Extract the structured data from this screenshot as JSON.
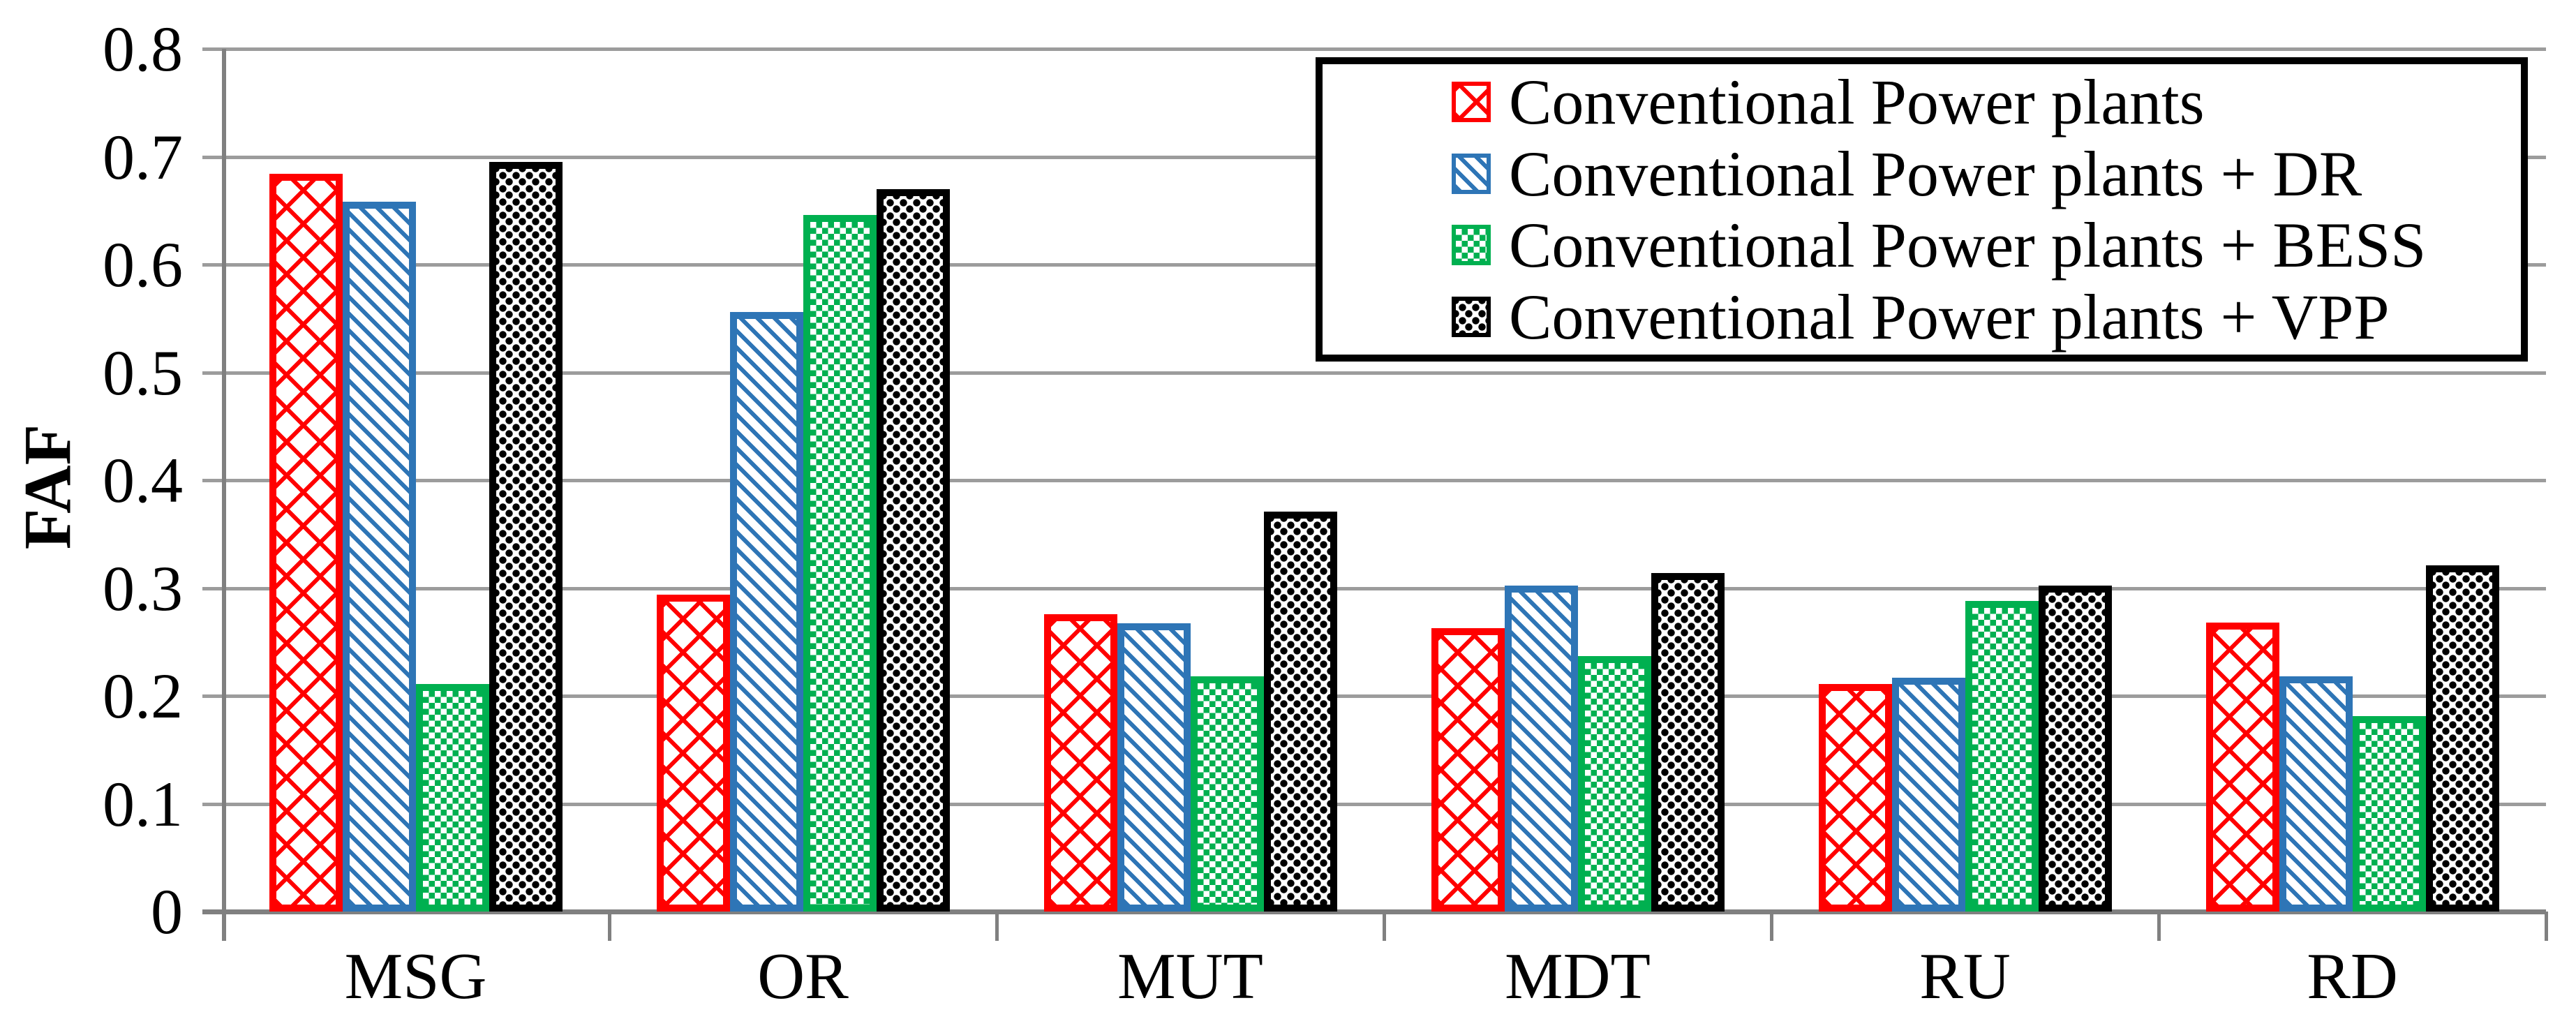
{
  "figure": {
    "background": "#FFFFFF",
    "axis_color": "#808080",
    "gridline_color": "#9C9C9C",
    "legend_border_color": "#000000"
  },
  "chart_data": {
    "type": "bar",
    "title": "",
    "xlabel": "",
    "ylabel": "FAF",
    "categories": [
      "MSG",
      "OR",
      "MUT",
      "MDT",
      "RU",
      "RD"
    ],
    "series": [
      {
        "key": "cpp",
        "name": "Conventional Power plants",
        "color": "#FF0000",
        "pattern": "crosshatch",
        "values": [
          0.684,
          0.294,
          0.276,
          0.263,
          0.211,
          0.268
        ]
      },
      {
        "key": "cpp-dr",
        "name": "Conventional Power plants + DR",
        "color": "#2E75B6",
        "pattern": "diagonal-stripes",
        "values": [
          0.658,
          0.556,
          0.267,
          0.302,
          0.217,
          0.218
        ]
      },
      {
        "key": "cpp-bess",
        "name": "Conventional Power plants + BESS",
        "color": "#00B050",
        "pattern": "checkerboard",
        "values": [
          0.211,
          0.646,
          0.218,
          0.237,
          0.288,
          0.181
        ]
      },
      {
        "key": "cpp-vpp",
        "name": "Conventional Power plants + VPP",
        "color": "#000000",
        "pattern": "dots",
        "values": [
          0.695,
          0.67,
          0.371,
          0.314,
          0.302,
          0.321
        ]
      }
    ],
    "ylim": [
      0,
      0.8
    ],
    "yticks": [
      "0",
      "0.1",
      "0.2",
      "0.3",
      "0.4",
      "0.5",
      "0.6",
      "0.7",
      "0.8"
    ],
    "grid": true,
    "legend_position": "top-right"
  }
}
